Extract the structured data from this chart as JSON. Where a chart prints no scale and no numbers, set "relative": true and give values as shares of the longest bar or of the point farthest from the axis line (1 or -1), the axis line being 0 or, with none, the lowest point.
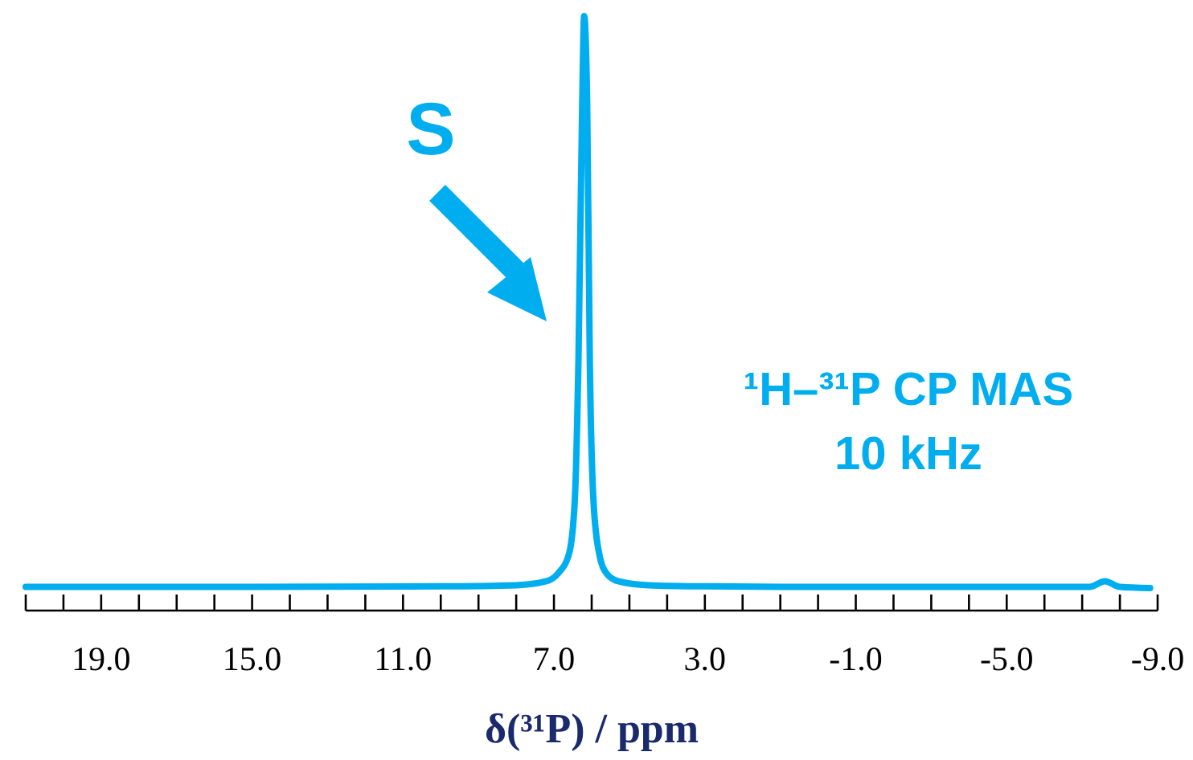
{
  "chart_data": {
    "type": "line",
    "relative": true,
    "xlabel": "δ(³¹P) / ppm",
    "xlim": [
      21,
      -9
    ],
    "xticks": [
      {
        "value": 21,
        "label": null
      },
      {
        "value": 20,
        "label": null
      },
      {
        "value": 19,
        "label": "19.0"
      },
      {
        "value": 18,
        "label": null
      },
      {
        "value": 17,
        "label": null
      },
      {
        "value": 16,
        "label": null
      },
      {
        "value": 15,
        "label": "15.0"
      },
      {
        "value": 14,
        "label": null
      },
      {
        "value": 13,
        "label": null
      },
      {
        "value": 12,
        "label": null
      },
      {
        "value": 11,
        "label": "11.0"
      },
      {
        "value": 10,
        "label": null
      },
      {
        "value": 9,
        "label": null
      },
      {
        "value": 8,
        "label": null
      },
      {
        "value": 7,
        "label": "7.0"
      },
      {
        "value": 6,
        "label": null
      },
      {
        "value": 5,
        "label": null
      },
      {
        "value": 4,
        "label": null
      },
      {
        "value": 3,
        "label": "3.0"
      },
      {
        "value": 2,
        "label": null
      },
      {
        "value": 1,
        "label": null
      },
      {
        "value": 0,
        "label": null
      },
      {
        "value": -1,
        "label": "-1.0"
      },
      {
        "value": -2,
        "label": null
      },
      {
        "value": -3,
        "label": null
      },
      {
        "value": -4,
        "label": null
      },
      {
        "value": -5,
        "label": "-5.0"
      },
      {
        "value": -6,
        "label": null
      },
      {
        "value": -7,
        "label": null
      },
      {
        "value": -8,
        "label": null
      },
      {
        "value": -9,
        "label": "-9.0"
      }
    ],
    "series": [
      {
        "color": "#00aeef",
        "x": [
          21,
          15,
          10,
          8,
          7.2,
          6.9,
          6.6,
          6.45,
          6.35,
          6.25,
          6.2,
          6.12,
          6.05,
          5.95,
          5.8,
          5.6,
          5.3,
          4.5,
          3,
          0,
          -5,
          -7.2,
          -7.6,
          -8,
          -8.8
        ],
        "values": [
          0.002,
          0.002,
          0.003,
          0.005,
          0.012,
          0.025,
          0.06,
          0.15,
          0.4,
          0.85,
          1,
          0.85,
          0.4,
          0.15,
          0.06,
          0.025,
          0.012,
          0.005,
          0.003,
          0.002,
          0.002,
          0.002,
          0.012,
          0.002,
          0
        ]
      }
    ],
    "annotations": [
      "S",
      "¹H–³¹P CP MAS",
      "10 kHz"
    ],
    "marker": "none",
    "line_style": "solid"
  }
}
